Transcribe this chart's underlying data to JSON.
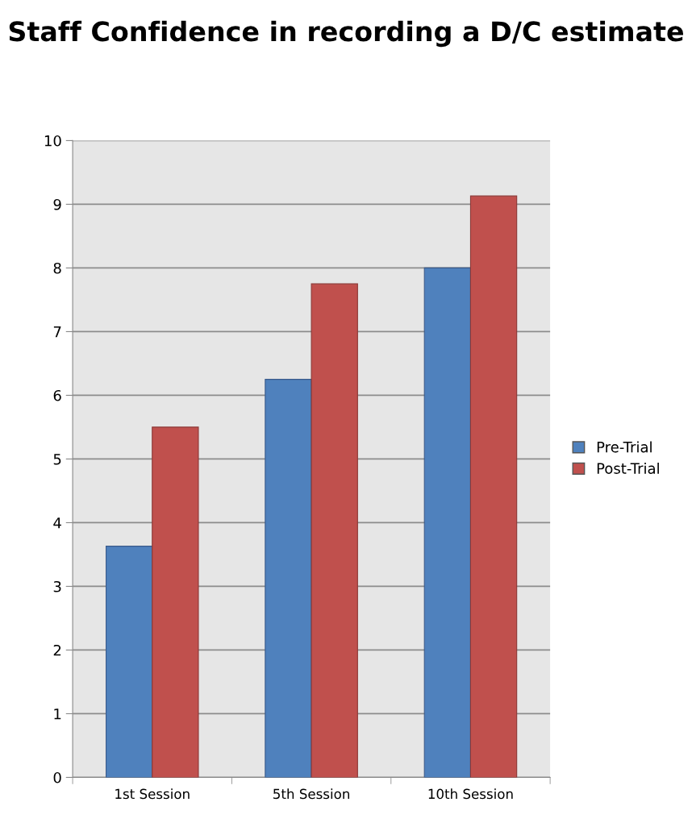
{
  "chart_data": {
    "type": "bar",
    "title": "Staff Confidence in recording a D/C estimate",
    "categories": [
      "1st Session",
      "5th Session",
      "10th Session"
    ],
    "series": [
      {
        "name": "Pre-Trial",
        "color": "#4f81bd",
        "values": [
          3.63,
          6.25,
          8.0
        ]
      },
      {
        "name": "Post-Trial",
        "color": "#c0504d",
        "values": [
          5.5,
          7.75,
          9.13
        ]
      }
    ],
    "ylim": [
      0,
      10
    ],
    "yticks": [
      0,
      1,
      2,
      3,
      4,
      5,
      6,
      7,
      8,
      9,
      10
    ],
    "grid": "y",
    "legend": "right"
  }
}
